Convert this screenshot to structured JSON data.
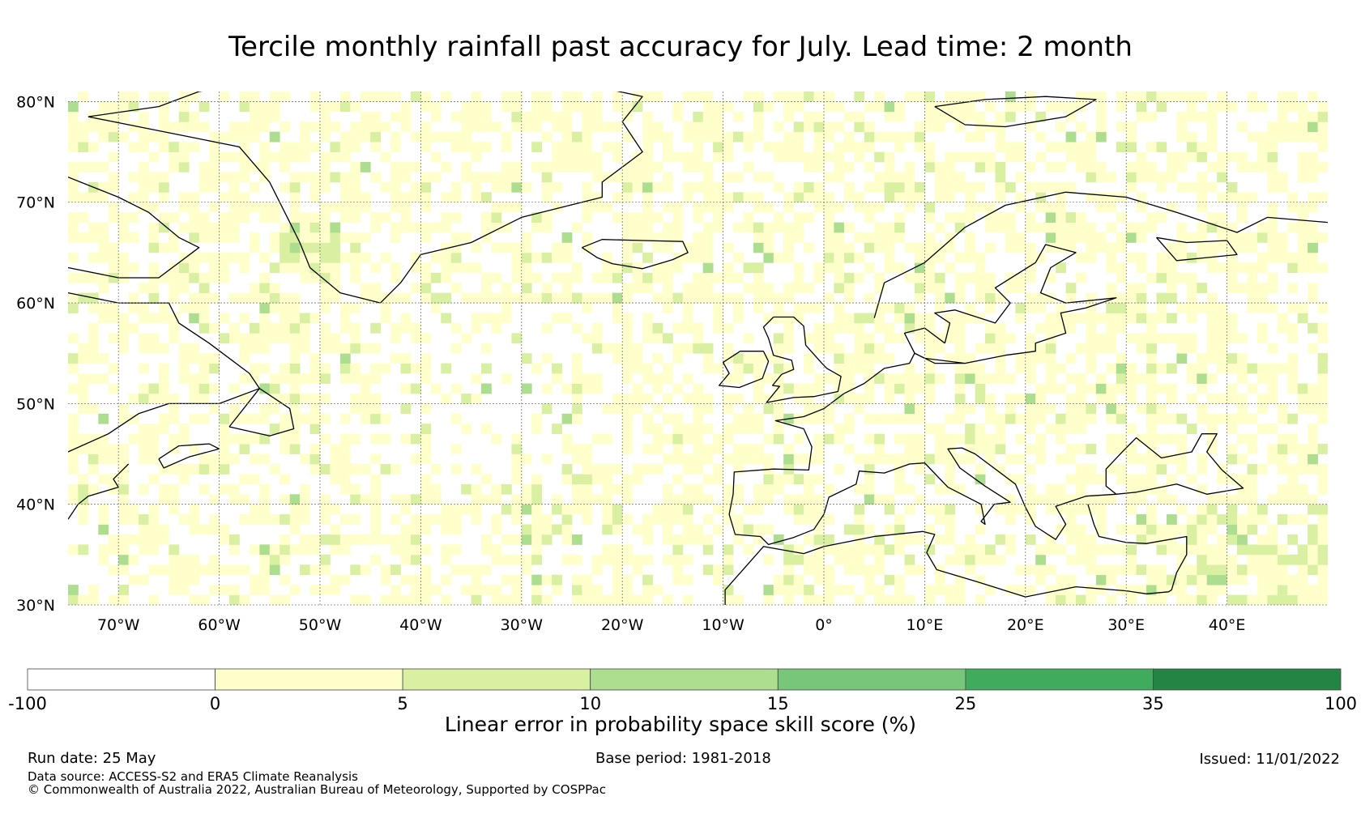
{
  "title": "Tercile monthly rainfall past accuracy for July. Lead time: 2 month",
  "map": {
    "lon_range": [
      -75,
      50
    ],
    "lat_range": [
      30,
      81
    ],
    "lat_ticks": [
      {
        "value": 80,
        "label": "80°N"
      },
      {
        "value": 70,
        "label": "70°N"
      },
      {
        "value": 60,
        "label": "60°N"
      },
      {
        "value": 50,
        "label": "50°N"
      },
      {
        "value": 40,
        "label": "40°N"
      },
      {
        "value": 30,
        "label": "30°N"
      }
    ],
    "lon_ticks": [
      {
        "value": -70,
        "label": "70°W"
      },
      {
        "value": -60,
        "label": "60°W"
      },
      {
        "value": -50,
        "label": "50°W"
      },
      {
        "value": -40,
        "label": "40°W"
      },
      {
        "value": -30,
        "label": "30°W"
      },
      {
        "value": -20,
        "label": "20°W"
      },
      {
        "value": -10,
        "label": "10°W"
      },
      {
        "value": 0,
        "label": "0°"
      },
      {
        "value": 10,
        "label": "10°E"
      },
      {
        "value": 20,
        "label": "20°E"
      },
      {
        "value": 30,
        "label": "30°E"
      },
      {
        "value": 40,
        "label": "40°E"
      }
    ],
    "gridlines": true
  },
  "colorbar": {
    "label": "Linear error in probability space skill score (%)",
    "bins": [
      {
        "from": -100,
        "to": 0,
        "color": "#ffffff"
      },
      {
        "from": 0,
        "to": 5,
        "color": "#ffffcc"
      },
      {
        "from": 5,
        "to": 10,
        "color": "#d9f0a3"
      },
      {
        "from": 10,
        "to": 15,
        "color": "#addd8e"
      },
      {
        "from": 15,
        "to": 25,
        "color": "#78c679"
      },
      {
        "from": 25,
        "to": 35,
        "color": "#41ab5d"
      },
      {
        "from": 35,
        "to": 100,
        "color": "#238443"
      }
    ],
    "tick_labels": [
      "-100",
      "0",
      "5",
      "10",
      "15",
      "25",
      "35",
      "100"
    ]
  },
  "footer": {
    "run_date": "Run date: 25 May",
    "base_period": "Base period: 1981-2018",
    "issued": "Issued: 11/01/2022",
    "data_source": "Data source: ACCESS-S2 and ERA5 Climate Reanalysis",
    "copyright": "© Commonwealth of Australia 2022, Australian Bureau of Meteorology, Supported by COSPPac"
  }
}
